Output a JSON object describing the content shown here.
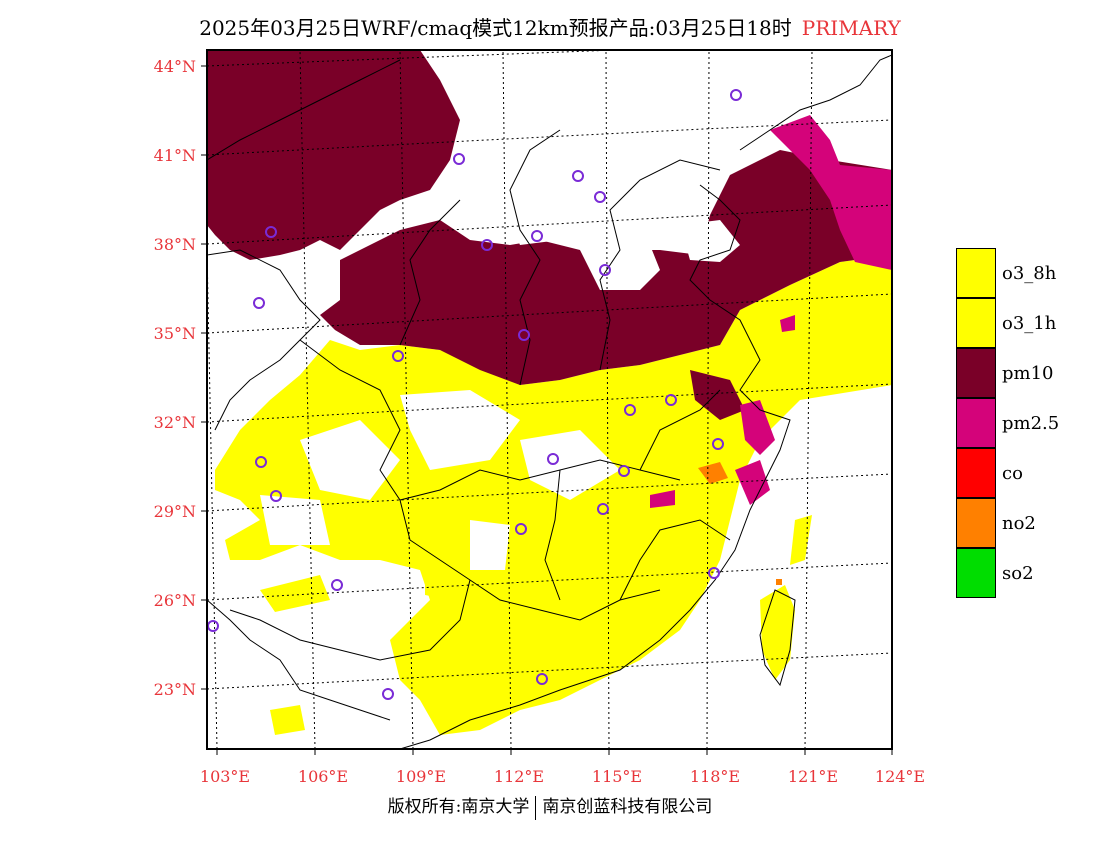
{
  "header": {
    "title": "2025年03月25日WRF/cmaq模式12km预报产品:03月25日18时",
    "badge": "PRIMARY",
    "badge_color": "#e8353a"
  },
  "axes": {
    "lat_labels": [
      "44°N",
      "41°N",
      "38°N",
      "35°N",
      "32°N",
      "29°N",
      "26°N",
      "23°N"
    ],
    "lon_labels": [
      "103°E",
      "106°E",
      "109°E",
      "112°E",
      "115°E",
      "118°E",
      "121°E",
      "124°E"
    ],
    "label_color": "#e8353a"
  },
  "legend": {
    "items": [
      {
        "label": "o3_8h",
        "color": "#ffff00"
      },
      {
        "label": "o3_1h",
        "color": "#ffff00"
      },
      {
        "label": "pm10",
        "color": "#7a0028"
      },
      {
        "label": "pm2.5",
        "color": "#d4037a"
      },
      {
        "label": "co",
        "color": "#ff0000"
      },
      {
        "label": "no2",
        "color": "#ff8000"
      },
      {
        "label": "so2",
        "color": "#00dd00"
      }
    ]
  },
  "footer": {
    "left": "版权所有:南京大学",
    "right": "南京创蓝科技有限公司"
  }
}
